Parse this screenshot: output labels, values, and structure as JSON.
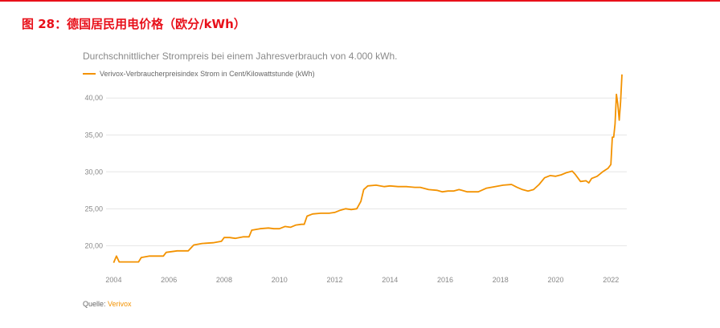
{
  "figure": {
    "title": "图 28：德国居民用电价格（欧分/kWh）",
    "title_color": "#e8101a",
    "rule_color": "#e8101a"
  },
  "chart": {
    "subtitle": "Durchschnittlicher Strompreis bei einem Jahresverbrauch von 4.000 kWh.",
    "source_label": "Quelle:",
    "source_name": "Verivox"
  },
  "chart_data": {
    "type": "line",
    "title": "Durchschnittlicher Strompreis bei einem Jahresverbrauch von 4.000 kWh.",
    "xlabel": "",
    "ylabel": "",
    "xlim": [
      2003.9,
      2022.4
    ],
    "ylim": [
      17.0,
      43.5
    ],
    "x_ticks": [
      2004,
      2006,
      2008,
      2010,
      2012,
      2014,
      2016,
      2018,
      2020,
      2022
    ],
    "y_ticks": [
      20,
      25,
      30,
      35,
      40
    ],
    "y_tick_labels": [
      "20,00",
      "25,00",
      "30,00",
      "35,00",
      "40,00"
    ],
    "grid": "horizontal",
    "legend_position": "top-left",
    "series": [
      {
        "name": "Verivox-Verbraucherpreisindex Strom in Cent/Kilowattstunde (kWh)",
        "color": "#f39200",
        "points": [
          [
            2004.0,
            17.7
          ],
          [
            2004.1,
            18.6
          ],
          [
            2004.2,
            17.8
          ],
          [
            2004.5,
            17.8
          ],
          [
            2004.9,
            17.8
          ],
          [
            2005.0,
            18.4
          ],
          [
            2005.3,
            18.6
          ],
          [
            2005.8,
            18.6
          ],
          [
            2005.9,
            19.1
          ],
          [
            2006.3,
            19.3
          ],
          [
            2006.7,
            19.3
          ],
          [
            2006.9,
            20.1
          ],
          [
            2007.2,
            20.3
          ],
          [
            2007.6,
            20.4
          ],
          [
            2007.9,
            20.6
          ],
          [
            2008.0,
            21.1
          ],
          [
            2008.2,
            21.1
          ],
          [
            2008.4,
            21.0
          ],
          [
            2008.7,
            21.2
          ],
          [
            2008.9,
            21.2
          ],
          [
            2009.0,
            22.1
          ],
          [
            2009.3,
            22.3
          ],
          [
            2009.6,
            22.4
          ],
          [
            2009.8,
            22.3
          ],
          [
            2010.0,
            22.3
          ],
          [
            2010.2,
            22.6
          ],
          [
            2010.4,
            22.5
          ],
          [
            2010.6,
            22.8
          ],
          [
            2010.8,
            22.9
          ],
          [
            2010.9,
            22.9
          ],
          [
            2011.0,
            24.0
          ],
          [
            2011.2,
            24.3
          ],
          [
            2011.5,
            24.4
          ],
          [
            2011.8,
            24.4
          ],
          [
            2012.0,
            24.5
          ],
          [
            2012.2,
            24.8
          ],
          [
            2012.4,
            25.0
          ],
          [
            2012.6,
            24.9
          ],
          [
            2012.8,
            25.0
          ],
          [
            2012.95,
            26.0
          ],
          [
            2013.05,
            27.6
          ],
          [
            2013.2,
            28.1
          ],
          [
            2013.5,
            28.2
          ],
          [
            2013.8,
            28.0
          ],
          [
            2014.0,
            28.1
          ],
          [
            2014.3,
            28.0
          ],
          [
            2014.6,
            28.0
          ],
          [
            2014.9,
            27.9
          ],
          [
            2015.1,
            27.9
          ],
          [
            2015.4,
            27.6
          ],
          [
            2015.7,
            27.5
          ],
          [
            2015.9,
            27.3
          ],
          [
            2016.1,
            27.4
          ],
          [
            2016.3,
            27.4
          ],
          [
            2016.5,
            27.6
          ],
          [
            2016.6,
            27.5
          ],
          [
            2016.8,
            27.3
          ],
          [
            2017.0,
            27.3
          ],
          [
            2017.2,
            27.3
          ],
          [
            2017.5,
            27.8
          ],
          [
            2017.8,
            28.0
          ],
          [
            2018.1,
            28.2
          ],
          [
            2018.4,
            28.3
          ],
          [
            2018.6,
            27.9
          ],
          [
            2018.8,
            27.6
          ],
          [
            2019.0,
            27.4
          ],
          [
            2019.2,
            27.6
          ],
          [
            2019.4,
            28.3
          ],
          [
            2019.6,
            29.2
          ],
          [
            2019.8,
            29.5
          ],
          [
            2020.0,
            29.4
          ],
          [
            2020.2,
            29.6
          ],
          [
            2020.4,
            29.9
          ],
          [
            2020.6,
            30.1
          ],
          [
            2020.7,
            29.7
          ],
          [
            2020.8,
            29.2
          ],
          [
            2020.9,
            28.7
          ],
          [
            2021.1,
            28.8
          ],
          [
            2021.2,
            28.5
          ],
          [
            2021.3,
            29.1
          ],
          [
            2021.5,
            29.4
          ],
          [
            2021.7,
            30.0
          ],
          [
            2021.9,
            30.5
          ],
          [
            2022.0,
            31.0
          ],
          [
            2022.05,
            34.7
          ],
          [
            2022.1,
            34.7
          ],
          [
            2022.15,
            36.5
          ],
          [
            2022.2,
            40.5
          ],
          [
            2022.25,
            39.2
          ],
          [
            2022.3,
            37.0
          ],
          [
            2022.35,
            39.5
          ],
          [
            2022.4,
            43.2
          ]
        ]
      }
    ]
  }
}
